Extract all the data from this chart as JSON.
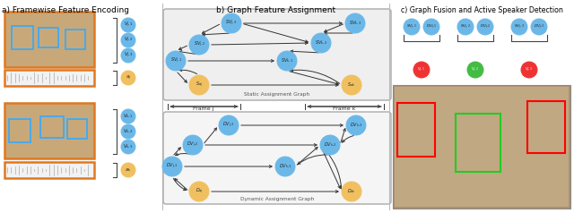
{
  "title_a": "a) Framewise Feature Encoding",
  "title_b": "b) Graph Feature Assignment",
  "title_c": "c) Graph Fusion and Active Speaker Detection",
  "node_blue_color": "#6BB8E8",
  "node_gold_color": "#F0C060",
  "node_red_color": "#EE3333",
  "node_green_color": "#44BB44",
  "bg_color": "#FFFFFF",
  "font_size_title": 6.5
}
